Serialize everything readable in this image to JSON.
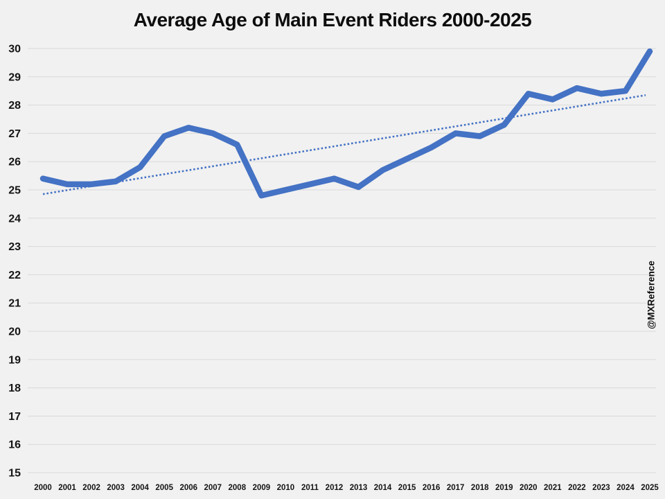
{
  "title": "Average Age of Main Event Riders 2000-2025",
  "watermark": "@MXReference",
  "colors": {
    "background": "#F1F1F1",
    "gridline": "#D9D9D9",
    "line": "#4472C4",
    "trendline": "#4472C4",
    "text": "#141414"
  },
  "chart_data": {
    "type": "line",
    "title": "Average Age of Main Event Riders 2000-2025",
    "x": [
      2000,
      2001,
      2002,
      2003,
      2004,
      2005,
      2006,
      2007,
      2008,
      2009,
      2010,
      2011,
      2012,
      2013,
      2014,
      2015,
      2016,
      2017,
      2018,
      2019,
      2020,
      2021,
      2022,
      2023,
      2024,
      2025
    ],
    "series": [
      {
        "name": "Average age of main event riders",
        "values": [
          25.4,
          25.2,
          25.2,
          25.3,
          25.8,
          26.9,
          27.2,
          27.0,
          26.6,
          24.8,
          25.0,
          25.2,
          25.4,
          25.1,
          25.7,
          26.1,
          26.5,
          27.0,
          26.9,
          27.3,
          28.4,
          28.2,
          28.6,
          28.4,
          28.5,
          29.9
        ]
      }
    ],
    "trendline": {
      "type": "linear",
      "style": "dotted",
      "start": 24.85,
      "end": 28.35
    },
    "xlabel": "",
    "ylabel": "",
    "ylim": [
      15,
      30
    ],
    "ytick_step": 1,
    "grid": true,
    "legend": false,
    "annotations": [
      "@MXReference"
    ]
  }
}
